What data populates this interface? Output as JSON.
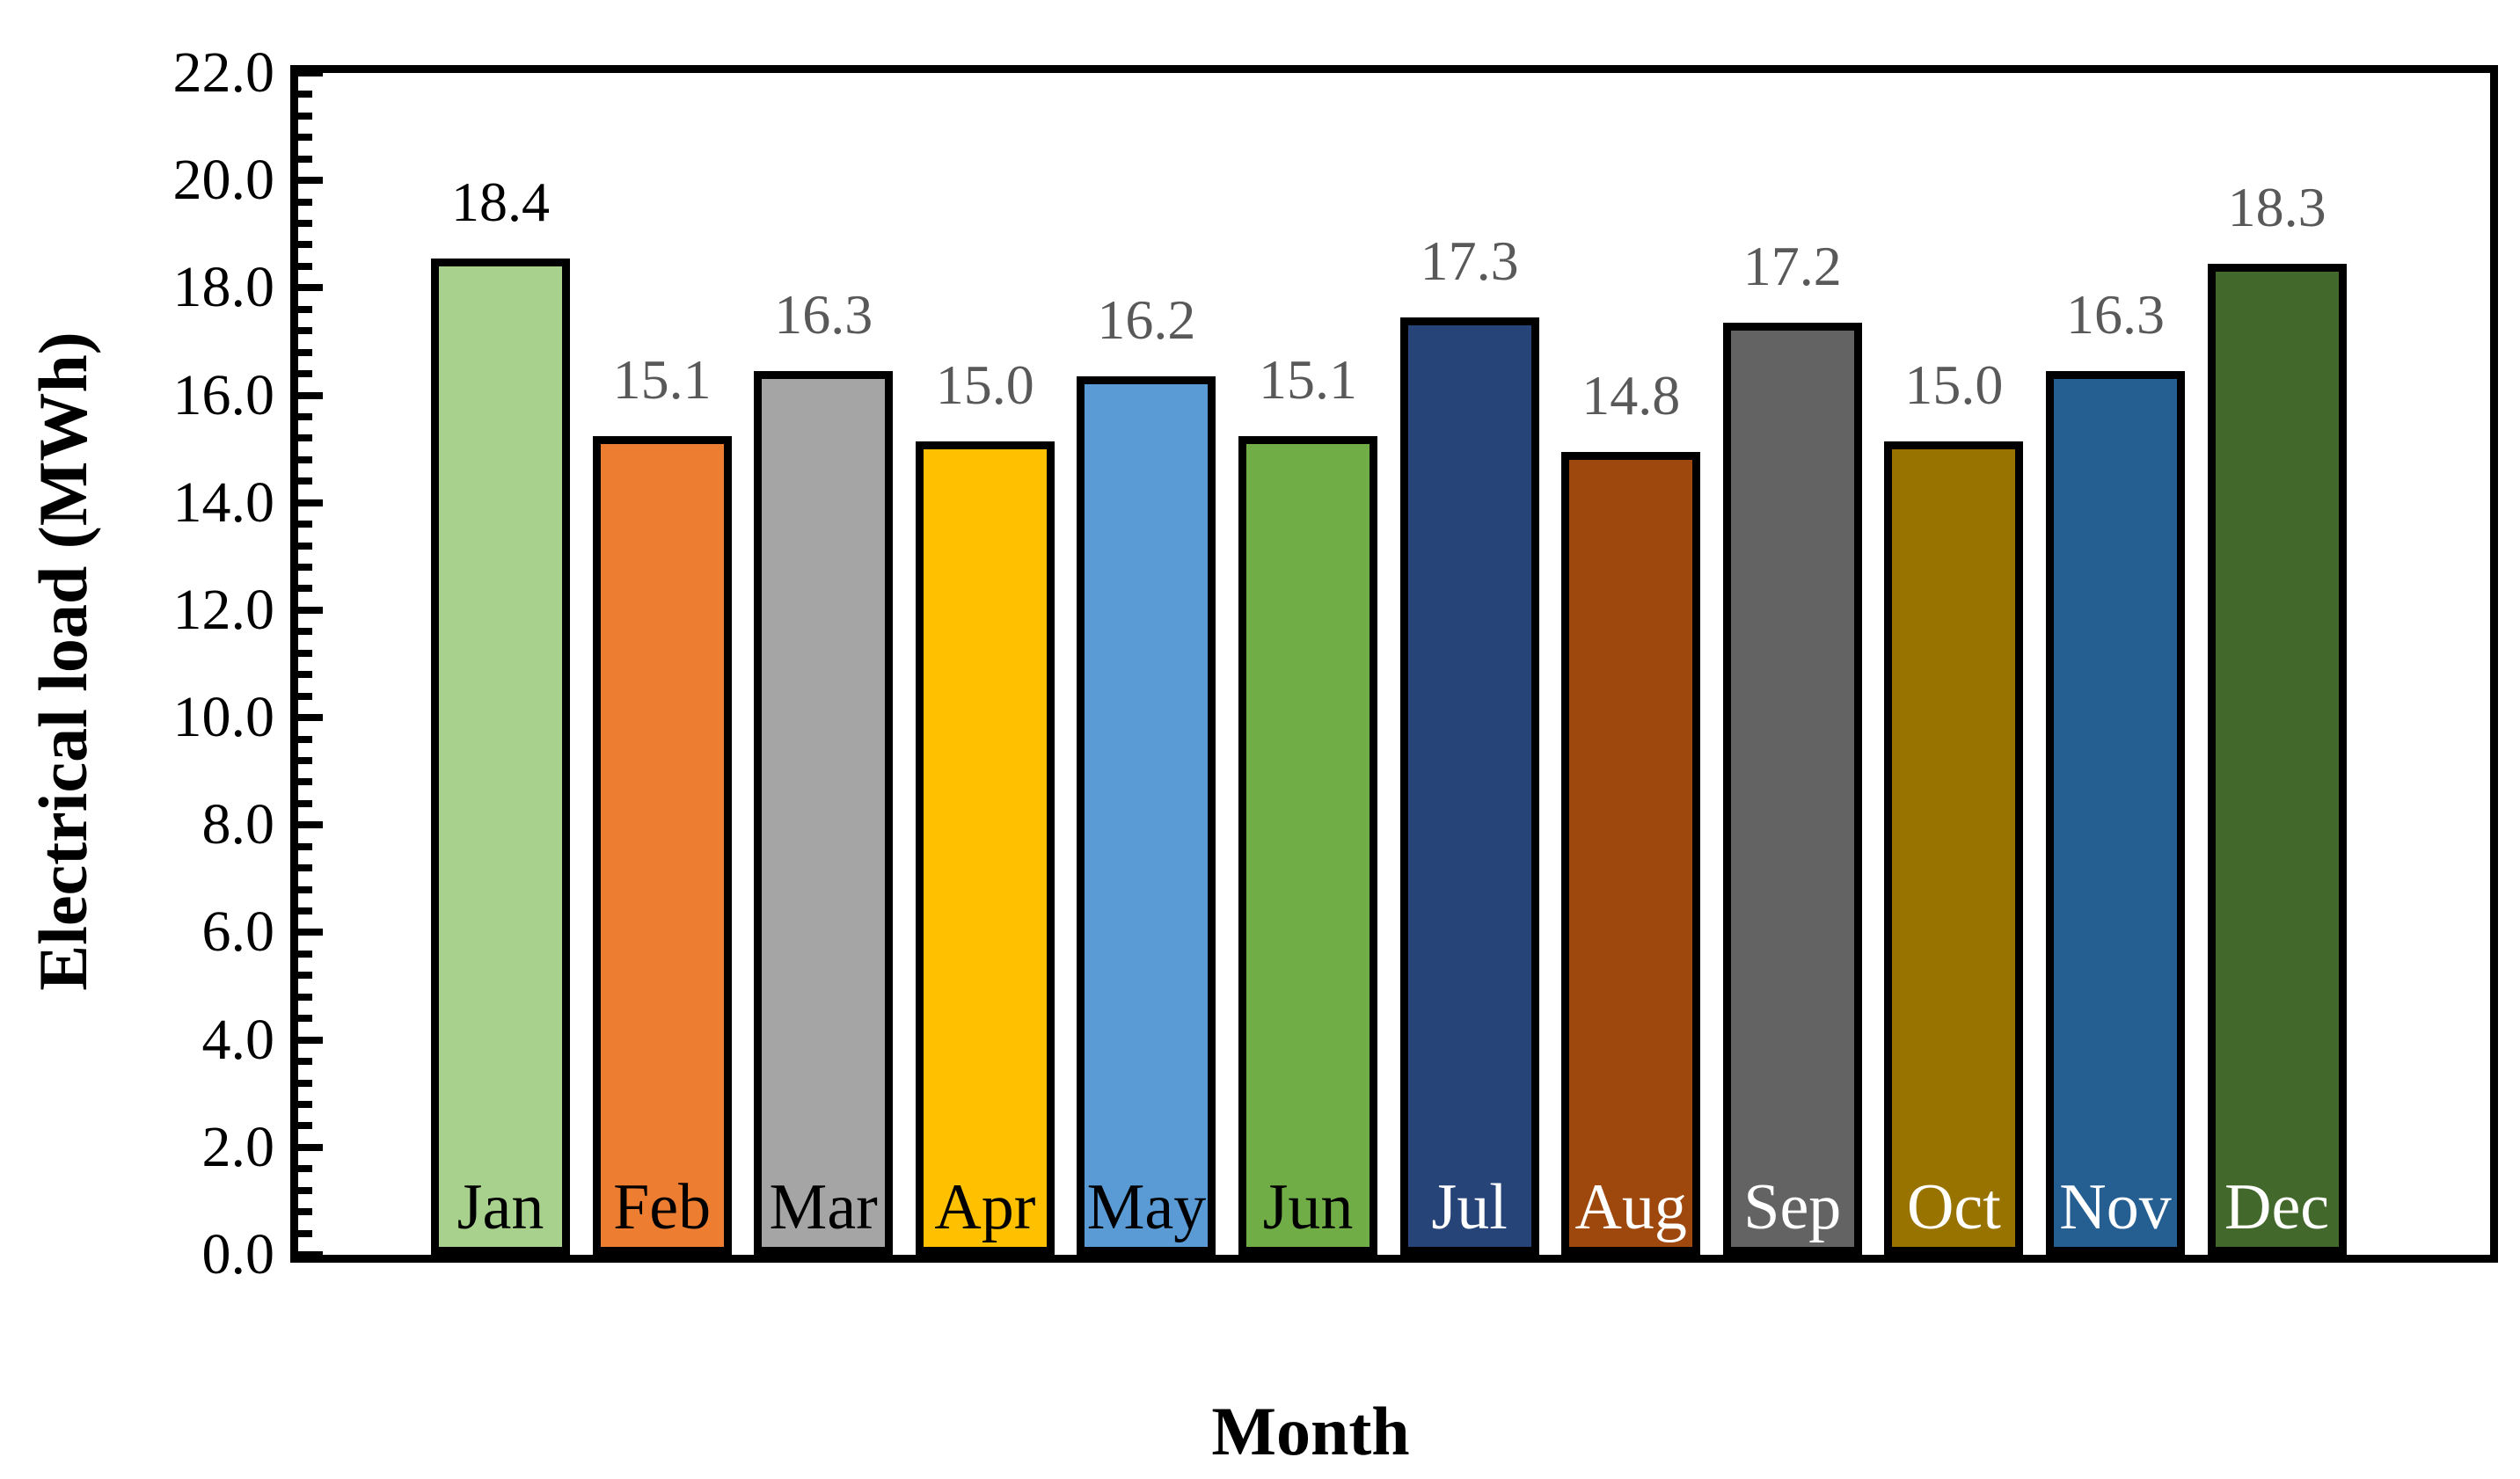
{
  "figure": {
    "background": "#FFFFFF",
    "y_axis_title": "Electrical load (MWh)",
    "x_axis_title": "Month"
  },
  "chart_data": {
    "type": "bar",
    "title": "",
    "xlabel": "Month",
    "ylabel": "Electrical load (MWh)",
    "categories": [
      "Jan",
      "Feb",
      "Mar",
      "Apr",
      "May",
      "Jun",
      "Jul",
      "Aug",
      "Sep",
      "Oct",
      "Nov",
      "Dec"
    ],
    "values": [
      18.4,
      15.1,
      16.3,
      15.0,
      16.2,
      15.1,
      17.3,
      14.8,
      17.2,
      15.0,
      16.3,
      18.3
    ],
    "data_labels": [
      "18.4",
      "15.1",
      "16.3",
      "15.0",
      "16.2",
      "15.1",
      "17.3",
      "14.8",
      "17.2",
      "15.0",
      "16.3",
      "18.3"
    ],
    "bar_colors": [
      "#A9D18E",
      "#ED7D31",
      "#A5A5A5",
      "#FFC000",
      "#5B9BD5",
      "#70AD47",
      "#264478",
      "#9E480E",
      "#636363",
      "#997300",
      "#255E91",
      "#43682B"
    ],
    "bar_border_color": "#000000",
    "month_label_colors": [
      "#000000",
      "#000000",
      "#000000",
      "#000000",
      "#000000",
      "#000000",
      "#FFFFFF",
      "#FFFFFF",
      "#FFFFFF",
      "#FFFFFF",
      "#FFFFFF",
      "#FFFFFF"
    ],
    "value_label_colors": [
      "#000000",
      "#595959",
      "#595959",
      "#595959",
      "#595959",
      "#595959",
      "#595959",
      "#595959",
      "#595959",
      "#595959",
      "#595959",
      "#595959"
    ],
    "ylim": [
      0,
      22
    ],
    "ytick_step": 2.0,
    "y_minor_step": 0.4,
    "ytick_labels": [
      "22.0",
      "20.0",
      "18.0",
      "16.0",
      "14.0",
      "12.0",
      "10.0",
      "8.0",
      "6.0",
      "4.0",
      "2.0",
      "0.0"
    ],
    "grid": "off",
    "legend": "none",
    "tick_direction": "inside-left-axis"
  }
}
